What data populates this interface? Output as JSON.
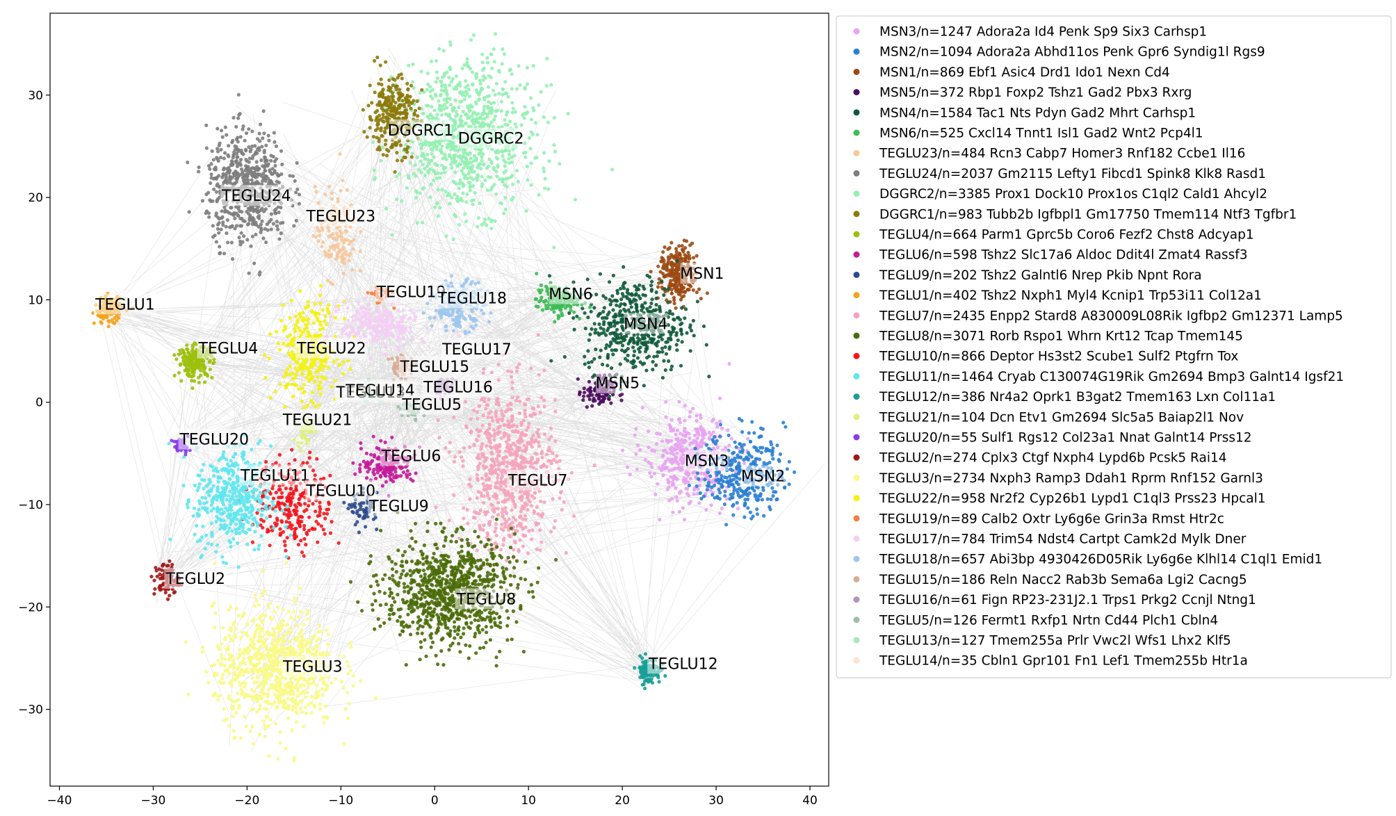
{
  "chart_data": {
    "type": "scatter",
    "title": "",
    "xlabel": "",
    "ylabel": "",
    "xlim": [
      -41,
      42
    ],
    "ylim": [
      -37.5,
      38
    ],
    "xticks": [
      -40,
      -30,
      -20,
      -10,
      0,
      10,
      20,
      30,
      40
    ],
    "yticks": [
      -30,
      -20,
      -10,
      0,
      10,
      20,
      30
    ],
    "grid": false,
    "legend_position": "outside-right",
    "edges_color": "#8c8c8c",
    "clusters": [
      {
        "label": "MSN3",
        "legend": "MSN3/n=1247 Adora2a Id4 Penk Sp9 Six3 Carhsp1",
        "color": "#e8a3f2",
        "x": 27,
        "y": -5.5,
        "sx": 3.2,
        "sy": 3.0
      },
      {
        "label": "MSN2",
        "legend": "MSN2/n=1094 Adora2a Abhd11os Penk Gpr6 Syndig1l Rgs9",
        "color": "#2a7fd4",
        "x": 33,
        "y": -6.8,
        "sx": 3.0,
        "sy": 2.8
      },
      {
        "label": "MSN1",
        "legend": "MSN1/n=869 Ebf1 Asic4 Drd1 Ido1 Nexn Cd4",
        "color": "#9c4a13",
        "x": 26,
        "y": 12.5,
        "sx": 1.4,
        "sy": 1.9
      },
      {
        "label": "MSN5",
        "legend": "MSN5/n=372 Rbp1 Foxp2 Tshz1 Gad2 Pbx3 Rxrg",
        "color": "#4e0d5e",
        "x": 17.5,
        "y": 1,
        "sx": 1.2,
        "sy": 1.1
      },
      {
        "label": "MSN4",
        "legend": "MSN4/n=1584 Tac1 Nts Pdyn Gad2 Mhrt Carhsp1",
        "color": "#0f5a3a",
        "x": 21.5,
        "y": 7.5,
        "sx": 3.8,
        "sy": 3.2
      },
      {
        "label": "MSN6",
        "legend": "MSN6/n=525 Cxcl14 Tnnt1 Isl1 Gad2 Wnt2 Pcp4l1",
        "color": "#3dbb55",
        "x": 13,
        "y": 10,
        "sx": 1.5,
        "sy": 1.0
      },
      {
        "label": "TEGLU23",
        "legend": "TEGLU23/n=484 Rcn3 Cabp7 Homer3 Rnf182 Ccbe1 Il16",
        "color": "#f8c79b",
        "x": -10.5,
        "y": 16.5,
        "sx": 1.5,
        "sy": 3.0
      },
      {
        "label": "TEGLU24",
        "legend": "TEGLU24/n=2037 Gm2115 Lefty1 Fibcd1 Spink8 Klk8 Rasd1",
        "color": "#7d7d7d",
        "x": -20,
        "y": 21,
        "sx": 3.0,
        "sy": 3.8
      },
      {
        "label": "DGGRC2",
        "legend": "DGGRC2/n=3385 Prox1 Dock10 Prox1os C1ql2 Cald1 Ahcyl2",
        "color": "#95f0b3",
        "x": 3.5,
        "y": 26,
        "sx": 5.0,
        "sy": 5.0
      },
      {
        "label": "DGGRC1",
        "legend": "DGGRC1/n=983 Tubb2b Igfbpl1 Gm17750 Tmem114 Ntf3 Tgfbr1",
        "color": "#8c7a0a",
        "x": -4.5,
        "y": 28,
        "sx": 1.8,
        "sy": 2.6
      },
      {
        "label": "TEGLU4",
        "legend": "TEGLU4/n=664 Parm1 Gprc5b Coro6 Fezf2 Chst8 Adcyap1",
        "color": "#9cc00c",
        "x": -25.5,
        "y": 4,
        "sx": 1.3,
        "sy": 1.1
      },
      {
        "label": "TEGLU6",
        "legend": "TEGLU6/n=598 Tshz2 Slc17a6 Aldoc Ddit4l Zmat4 Rassf3",
        "color": "#c41a9a",
        "x": -5,
        "y": -6,
        "sx": 1.9,
        "sy": 1.3
      },
      {
        "label": "TEGLU9",
        "legend": "TEGLU9/n=202 Tshz2 Galntl6 Nrep Pkib Npnt Rora",
        "color": "#2b4b8c",
        "x": -7.5,
        "y": -10.5,
        "sx": 1.0,
        "sy": 1.1
      },
      {
        "label": "TEGLU1",
        "legend": "TEGLU1/n=402 Tshz2 Nxph1 Myl4 Kcnip1 Trp53i11 Col12a1",
        "color": "#f5a21b",
        "x": -34.8,
        "y": 9,
        "sx": 1.0,
        "sy": 0.9
      },
      {
        "label": "TEGLU7",
        "legend": "TEGLU7/n=2435 Enpp2 Stard8 A830009L08Rik Igfbp2 Gm12371 Lamp5",
        "color": "#f5a4bd",
        "x": 8,
        "y": -6.5,
        "sx": 3.5,
        "sy": 5.5
      },
      {
        "label": "TEGLU8",
        "legend": "TEGLU8/n=3071 Rorb Rspo1 Whrn Krt12 Tcap Tmem145",
        "color": "#4b6b08",
        "x": 1.5,
        "y": -18.5,
        "sx": 4.8,
        "sy": 3.6
      },
      {
        "label": "TEGLU10",
        "legend": "TEGLU10/n=866 Deptor Hs3st2 Scube1 Sulf2 Ptgfrn Tox",
        "color": "#f5141c",
        "x": -15,
        "y": -10,
        "sx": 2.8,
        "sy": 3.0
      },
      {
        "label": "TEGLU11",
        "legend": "TEGLU11/n=1464 Cryab C130074G19Rik Gm2694 Bmp3 Galnt14 Igsf21",
        "color": "#5fe7f0",
        "x": -21.5,
        "y": -9.5,
        "sx": 2.8,
        "sy": 3.6
      },
      {
        "label": "TEGLU12",
        "legend": "TEGLU12/n=386 Nr4a2 Oprk1 B3gat2 Tmem163 Lxn Col11a1",
        "color": "#1a9e96",
        "x": 22.8,
        "y": -26.2,
        "sx": 0.9,
        "sy": 0.9
      },
      {
        "label": "TEGLU21",
        "legend": "TEGLU21/n=104 Dcn Etv1 Gm2694 Slc5a5 Baiap2l1 Nov",
        "color": "#dff07c",
        "x": -13.8,
        "y": -2.8,
        "sx": 0.6,
        "sy": 0.9
      },
      {
        "label": "TEGLU20",
        "legend": "TEGLU20/n=55 Sulf1 Rgs12 Col23a1 Nnat Galnt14 Prss12",
        "color": "#8a3be8",
        "x": -27,
        "y": -4.3,
        "sx": 0.6,
        "sy": 0.5
      },
      {
        "label": "TEGLU2",
        "legend": "TEGLU2/n=274 Cplx3 Ctgf Nxph4 Lypd6b Pcsk5 Rai14",
        "color": "#a01818",
        "x": -28.6,
        "y": -17.3,
        "sx": 0.9,
        "sy": 1.2
      },
      {
        "label": "TEGLU3",
        "legend": "TEGLU3/n=2734 Nxph3 Ramp3 Ddah1 Rprm Rnf152 Garnl3",
        "color": "#fafa86",
        "x": -17,
        "y": -26,
        "sx": 4.5,
        "sy": 4.0
      },
      {
        "label": "TEGLU22",
        "legend": "TEGLU22/n=958 Nr2f2 Cyp26b1 Lypd1 C1ql3 Prss23 Hpcal1",
        "color": "#f4f20c",
        "x": -13.5,
        "y": 5,
        "sx": 2.3,
        "sy": 3.2
      },
      {
        "label": "TEGLU19",
        "legend": "TEGLU19/n=89 Calb2 Oxtr Ly6g6e Grin3a Rmst Htr2c",
        "color": "#f77f3f",
        "x": -5.8,
        "y": 10.5,
        "sx": 0.8,
        "sy": 0.6
      },
      {
        "label": "TEGLU17",
        "legend": "TEGLU17/n=784 Trim54 Ndst4 Cartpt Camk2d Mylk Dner",
        "color": "#f5cef5",
        "x": -6,
        "y": 7.5,
        "sx": 2.8,
        "sy": 1.6
      },
      {
        "label": "TEGLU18",
        "legend": "TEGLU18/n=657 Abi3bp 4930426D05Rik Ly6g6e Klhl14 C1ql1 Emid1",
        "color": "#9dc6f0",
        "x": 2.5,
        "y": 9.5,
        "sx": 2.0,
        "sy": 1.6
      },
      {
        "label": "TEGLU15",
        "legend": "TEGLU15/n=186 Reln Nacc2 Rab3b Sema6a Lgi2 Cacng5",
        "color": "#d6ad96",
        "x": -3.5,
        "y": 3.5,
        "sx": 0.9,
        "sy": 0.8
      },
      {
        "label": "TEGLU16",
        "legend": "TEGLU16/n=61 Fign RP23-231J2.1 Trps1 Prkg2 Ccnjl Ntng1",
        "color": "#b293c0",
        "x": 1,
        "y": 1.5,
        "sx": 0.7,
        "sy": 0.6
      },
      {
        "label": "TEGLU5",
        "legend": "TEGLU5/n=126 Fermt1 Rxfp1 Nrtn Cd44 Plch1 Cbln4",
        "color": "#9ebfa6",
        "x": -2.5,
        "y": -0.5,
        "sx": 0.9,
        "sy": 0.7
      },
      {
        "label": "TEGLU13",
        "legend": "TEGLU13/n=127 Tmem255a Prlr Vwc2l Wfs1 Lhx2 Klf5",
        "color": "#a9e8b8",
        "x": -6.5,
        "y": 1,
        "sx": 0.9,
        "sy": 0.7
      },
      {
        "label": "TEGLU14",
        "legend": "TEGLU14/n=35 Cbln1 Gpr101 Fn1 Lef1 Tmem255b Htr1a",
        "color": "#fde2cd",
        "x": -5,
        "y": 1.2,
        "sx": 0.6,
        "sy": 0.5
      }
    ],
    "annotations": [
      {
        "text": "DGGRC1",
        "x": -1.5,
        "y": 26.6
      },
      {
        "text": "DGGRC2",
        "x": 6,
        "y": 25.8
      },
      {
        "text": "TEGLU24",
        "x": -19,
        "y": 20.2
      },
      {
        "text": "TEGLU23",
        "x": -10,
        "y": 18.2
      },
      {
        "text": "MSN1",
        "x": 28.5,
        "y": 12.6
      },
      {
        "text": "TEGLU1",
        "x": -33,
        "y": 9.6
      },
      {
        "text": "TEGLU19",
        "x": -2.5,
        "y": 10.8
      },
      {
        "text": "TEGLU18",
        "x": 4,
        "y": 10.2
      },
      {
        "text": "MSN6",
        "x": 14.5,
        "y": 10.6
      },
      {
        "text": "MSN4",
        "x": 22.5,
        "y": 7.7
      },
      {
        "text": "TEGLU4",
        "x": -22,
        "y": 5.3
      },
      {
        "text": "TEGLU22",
        "x": -11,
        "y": 5.3
      },
      {
        "text": "TEGLU17",
        "x": 4.5,
        "y": 5.2
      },
      {
        "text": "TEGLU15",
        "x": 0,
        "y": 3.5
      },
      {
        "text": "MSN5",
        "x": 19.5,
        "y": 1.9
      },
      {
        "text": "TEGLU16",
        "x": 2.5,
        "y": 1.5
      },
      {
        "text": "TEGLU13",
        "x": -6.8,
        "y": 1.0
      },
      {
        "text": "TEGLU14",
        "x": -5.8,
        "y": 1.2
      },
      {
        "text": "TEGLU5",
        "x": -0.3,
        "y": -0.2
      },
      {
        "text": "TEGLU21",
        "x": -12.5,
        "y": -1.7
      },
      {
        "text": "TEGLU20",
        "x": -23.5,
        "y": -3.6
      },
      {
        "text": "TEGLU6",
        "x": -2.5,
        "y": -5.2
      },
      {
        "text": "MSN3",
        "x": 29,
        "y": -5.7
      },
      {
        "text": "TEGLU11",
        "x": -17,
        "y": -7.1
      },
      {
        "text": "MSN2",
        "x": 35,
        "y": -7.2
      },
      {
        "text": "TEGLU7",
        "x": 11,
        "y": -7.6
      },
      {
        "text": "TEGLU10",
        "x": -10,
        "y": -8.6
      },
      {
        "text": "TEGLU9",
        "x": -3.8,
        "y": -10.1
      },
      {
        "text": "TEGLU2",
        "x": -25.5,
        "y": -17.2
      },
      {
        "text": "TEGLU8",
        "x": 5.5,
        "y": -19.2
      },
      {
        "text": "TEGLU12",
        "x": 26.5,
        "y": -25.5
      },
      {
        "text": "TEGLU3",
        "x": -13,
        "y": -25.8
      }
    ]
  }
}
